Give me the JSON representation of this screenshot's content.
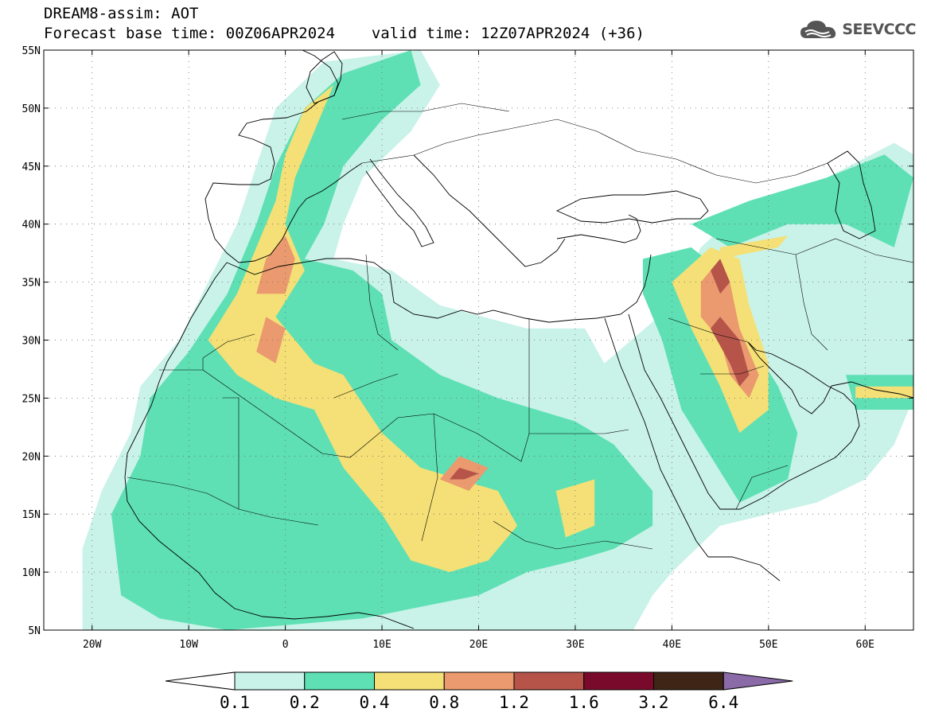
{
  "header": {
    "title": "DREAM8-assim: AOT",
    "base_label": "Forecast base time: 00Z06APR2024",
    "valid_label": "valid time: 12Z07APR2024 (+36)"
  },
  "logo": {
    "text": "SEEVCCC",
    "icon": "cloud-icon",
    "color": "#555555"
  },
  "chart_data": {
    "type": "heatmap",
    "variable": "AOT",
    "x_ticks": [
      {
        "value": -20,
        "label": "20W"
      },
      {
        "value": -10,
        "label": "10W"
      },
      {
        "value": 0,
        "label": "0"
      },
      {
        "value": 10,
        "label": "10E"
      },
      {
        "value": 20,
        "label": "20E"
      },
      {
        "value": 30,
        "label": "30E"
      },
      {
        "value": 40,
        "label": "40E"
      },
      {
        "value": 50,
        "label": "50E"
      },
      {
        "value": 60,
        "label": "60E"
      }
    ],
    "y_ticks": [
      {
        "value": 55,
        "label": "55N"
      },
      {
        "value": 50,
        "label": "50N"
      },
      {
        "value": 45,
        "label": "45N"
      },
      {
        "value": 40,
        "label": "40N"
      },
      {
        "value": 35,
        "label": "35N"
      },
      {
        "value": 30,
        "label": "30N"
      },
      {
        "value": 25,
        "label": "25N"
      },
      {
        "value": 20,
        "label": "20N"
      },
      {
        "value": 15,
        "label": "15N"
      },
      {
        "value": 10,
        "label": "10N"
      },
      {
        "value": 5,
        "label": "5N"
      }
    ],
    "lon_range": [
      -25,
      65
    ],
    "lat_range": [
      5,
      55
    ],
    "grid": "dotted",
    "colorbar": {
      "levels": [
        "0.1",
        "0.2",
        "0.4",
        "0.8",
        "1.2",
        "1.6",
        "3.2",
        "6.4"
      ],
      "colors": [
        "#ffffff",
        "#c9f2e8",
        "#5ee0b4",
        "#f4e076",
        "#ea9a6e",
        "#b6544a",
        "#7a0a2c",
        "#3e2516",
        "#8b6aa8"
      ]
    },
    "fields": [
      {
        "level": 0,
        "polys": [
          [
            [
              -21,
              5
            ],
            [
              -21,
              12
            ],
            [
              -19,
              17
            ],
            [
              -16,
              22
            ],
            [
              -15,
              26
            ],
            [
              -11,
              30
            ],
            [
              -8,
              35
            ],
            [
              -5,
              40
            ],
            [
              -3,
              45
            ],
            [
              -1,
              50
            ],
            [
              4,
              54
            ],
            [
              14,
              55
            ],
            [
              16,
              52
            ],
            [
              13,
              48
            ],
            [
              8,
              44
            ],
            [
              6,
              40
            ],
            [
              5,
              37
            ],
            [
              11,
              36
            ],
            [
              16,
              33
            ],
            [
              25,
              31
            ],
            [
              31,
              31
            ],
            [
              33,
              28
            ],
            [
              40,
              33
            ],
            [
              43,
              38
            ],
            [
              47,
              41
            ],
            [
              52,
              43
            ],
            [
              56,
              44
            ],
            [
              63,
              47
            ],
            [
              65,
              46
            ],
            [
              65,
              25
            ],
            [
              63,
              21
            ],
            [
              60,
              18
            ],
            [
              55,
              16
            ],
            [
              50,
              15
            ],
            [
              45,
              14
            ],
            [
              40,
              10
            ],
            [
              38,
              8
            ],
            [
              36,
              5
            ]
          ],
          [
            [
              26,
              30
            ],
            [
              31,
              30
            ],
            [
              32,
              28
            ],
            [
              27,
              27
            ]
          ]
        ]
      },
      {
        "level": 1,
        "polys": [
          [
            [
              -17,
              8
            ],
            [
              -18,
              15
            ],
            [
              -15,
              20
            ],
            [
              -14,
              25
            ],
            [
              -10,
              29
            ],
            [
              -6,
              34
            ],
            [
              -3,
              40
            ],
            [
              -1,
              45
            ],
            [
              2,
              50
            ],
            [
              6,
              53
            ],
            [
              13,
              55
            ],
            [
              14,
              52
            ],
            [
              10,
              49
            ],
            [
              6,
              45
            ],
            [
              4,
              40
            ],
            [
              2,
              37
            ],
            [
              7,
              36
            ],
            [
              10,
              34
            ],
            [
              11,
              30
            ],
            [
              16,
              27
            ],
            [
              22,
              25
            ],
            [
              30,
              23
            ],
            [
              34,
              21
            ],
            [
              38,
              17
            ],
            [
              38,
              14
            ],
            [
              34,
              12
            ],
            [
              30,
              11
            ],
            [
              25,
              10
            ],
            [
              20,
              8
            ],
            [
              14,
              7
            ],
            [
              8,
              6
            ],
            [
              -6,
              5
            ],
            [
              -13,
              6
            ]
          ],
          [
            [
              42,
              40
            ],
            [
              48,
              42
            ],
            [
              56,
              44
            ],
            [
              62,
              46
            ],
            [
              65,
              44
            ],
            [
              63,
              38
            ],
            [
              58,
              40
            ],
            [
              52,
              40
            ],
            [
              46,
              38
            ]
          ],
          [
            [
              37,
              37
            ],
            [
              42,
              38
            ],
            [
              45,
              36
            ],
            [
              48,
              30
            ],
            [
              51,
              26
            ],
            [
              53,
              22
            ],
            [
              52,
              18
            ],
            [
              47,
              16
            ],
            [
              44,
              20
            ],
            [
              41,
              24
            ],
            [
              39,
              30
            ],
            [
              37,
              34
            ]
          ],
          [
            [
              58,
              27
            ],
            [
              65,
              27
            ],
            [
              65,
              24
            ],
            [
              59,
              24
            ]
          ]
        ]
      },
      {
        "level": 2,
        "polys": [
          [
            [
              -8,
              30
            ],
            [
              -5,
              34
            ],
            [
              -3,
              38
            ],
            [
              -1,
              42
            ],
            [
              0,
              46
            ],
            [
              2,
              50
            ],
            [
              5,
              52
            ],
            [
              3,
              48
            ],
            [
              1,
              44
            ],
            [
              0,
              40
            ],
            [
              2,
              36
            ],
            [
              -1,
              32
            ],
            [
              3,
              28
            ],
            [
              6,
              27
            ],
            [
              10,
              22
            ],
            [
              14,
              19
            ],
            [
              18,
              18
            ],
            [
              22,
              17
            ],
            [
              24,
              14
            ],
            [
              21,
              11
            ],
            [
              17,
              10
            ],
            [
              13,
              11
            ],
            [
              10,
              15
            ],
            [
              6,
              19
            ],
            [
              3,
              24
            ],
            [
              -1,
              25
            ],
            [
              -5,
              27
            ]
          ],
          [
            [
              28,
              17
            ],
            [
              32,
              18
            ],
            [
              32,
              14
            ],
            [
              29,
              13
            ]
          ],
          [
            [
              40,
              35
            ],
            [
              44,
              38
            ],
            [
              47,
              37
            ],
            [
              48,
              33
            ],
            [
              50,
              28
            ],
            [
              50,
              24
            ],
            [
              47,
              22
            ],
            [
              45,
              26
            ],
            [
              42,
              31
            ]
          ],
          [
            [
              59,
              26
            ],
            [
              65,
              26
            ],
            [
              65,
              25
            ],
            [
              59,
              25
            ]
          ],
          [
            [
              45,
              38
            ],
            [
              52,
              39
            ],
            [
              51,
              38
            ],
            [
              45,
              37
            ]
          ]
        ]
      },
      {
        "level": 3,
        "polys": [
          [
            [
              -3,
              34
            ],
            [
              -2,
              37
            ],
            [
              0,
              39
            ],
            [
              1,
              37
            ],
            [
              0,
              34
            ]
          ],
          [
            [
              -3,
              29
            ],
            [
              -2,
              32
            ],
            [
              0,
              31
            ],
            [
              -1,
              28
            ]
          ],
          [
            [
              16,
              18
            ],
            [
              18,
              20
            ],
            [
              21,
              19
            ],
            [
              19,
              17
            ]
          ],
          [
            [
              43,
              35
            ],
            [
              45,
              37
            ],
            [
              46,
              35
            ],
            [
              47,
              31
            ],
            [
              49,
              27
            ],
            [
              48,
              25
            ],
            [
              46,
              27
            ],
            [
              45,
              30
            ],
            [
              43,
              32
            ]
          ]
        ]
      },
      {
        "level": 4,
        "polys": [
          [
            [
              17,
              18
            ],
            [
              18,
              19
            ],
            [
              20,
              18.5
            ],
            [
              18.5,
              18
            ]
          ],
          [
            [
              44,
              36
            ],
            [
              45,
              37
            ],
            [
              46,
              35
            ],
            [
              45,
              34
            ]
          ],
          [
            [
              44,
              31
            ],
            [
              45,
              32
            ],
            [
              47,
              30
            ],
            [
              48,
              27
            ],
            [
              47,
              26
            ],
            [
              46,
              28
            ]
          ]
        ]
      }
    ]
  }
}
